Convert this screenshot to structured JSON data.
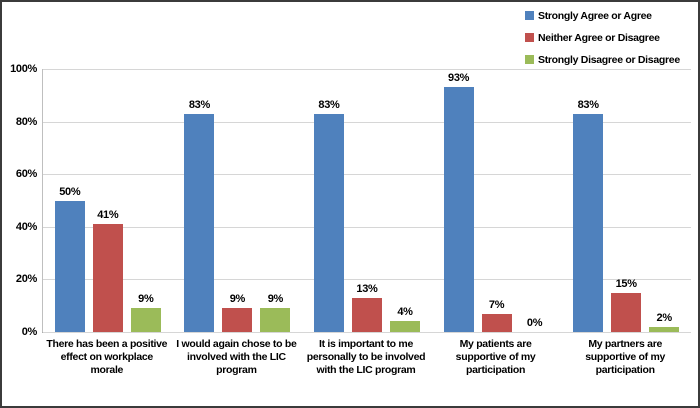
{
  "chart_data": {
    "type": "bar",
    "title": "",
    "xlabel": "",
    "ylabel": "",
    "ylim": [
      0,
      100
    ],
    "grid": true,
    "legend_position": "top-right",
    "yticks": [
      "100%",
      "80%",
      "60%",
      "40%",
      "20%",
      "0%"
    ],
    "categories": [
      "There has been a positive effect on workplace morale",
      "I would again chose to be involved with the LIC program",
      "It is important to me personally to be involved with the LIC program",
      "My patients are supportive of my participation",
      "My partners are supportive of my participation"
    ],
    "series": [
      {
        "name": "Strongly Agree or Agree",
        "color": "#4f81bd",
        "values": [
          50,
          83,
          83,
          93,
          83
        ]
      },
      {
        "name": "Neither Agree or Disagree",
        "color": "#c0504d",
        "values": [
          41,
          9,
          13,
          7,
          15
        ]
      },
      {
        "name": "Strongly Disagree or Disagree",
        "color": "#9bbb59",
        "values": [
          9,
          9,
          4,
          0,
          2
        ]
      }
    ],
    "value_label_suffix": "%"
  },
  "style": {
    "gridline_color": "#d6d6d6",
    "axis_color": "#9a9a9a",
    "frame_border_color": "#3b3b3b",
    "background": "#ffffff"
  }
}
